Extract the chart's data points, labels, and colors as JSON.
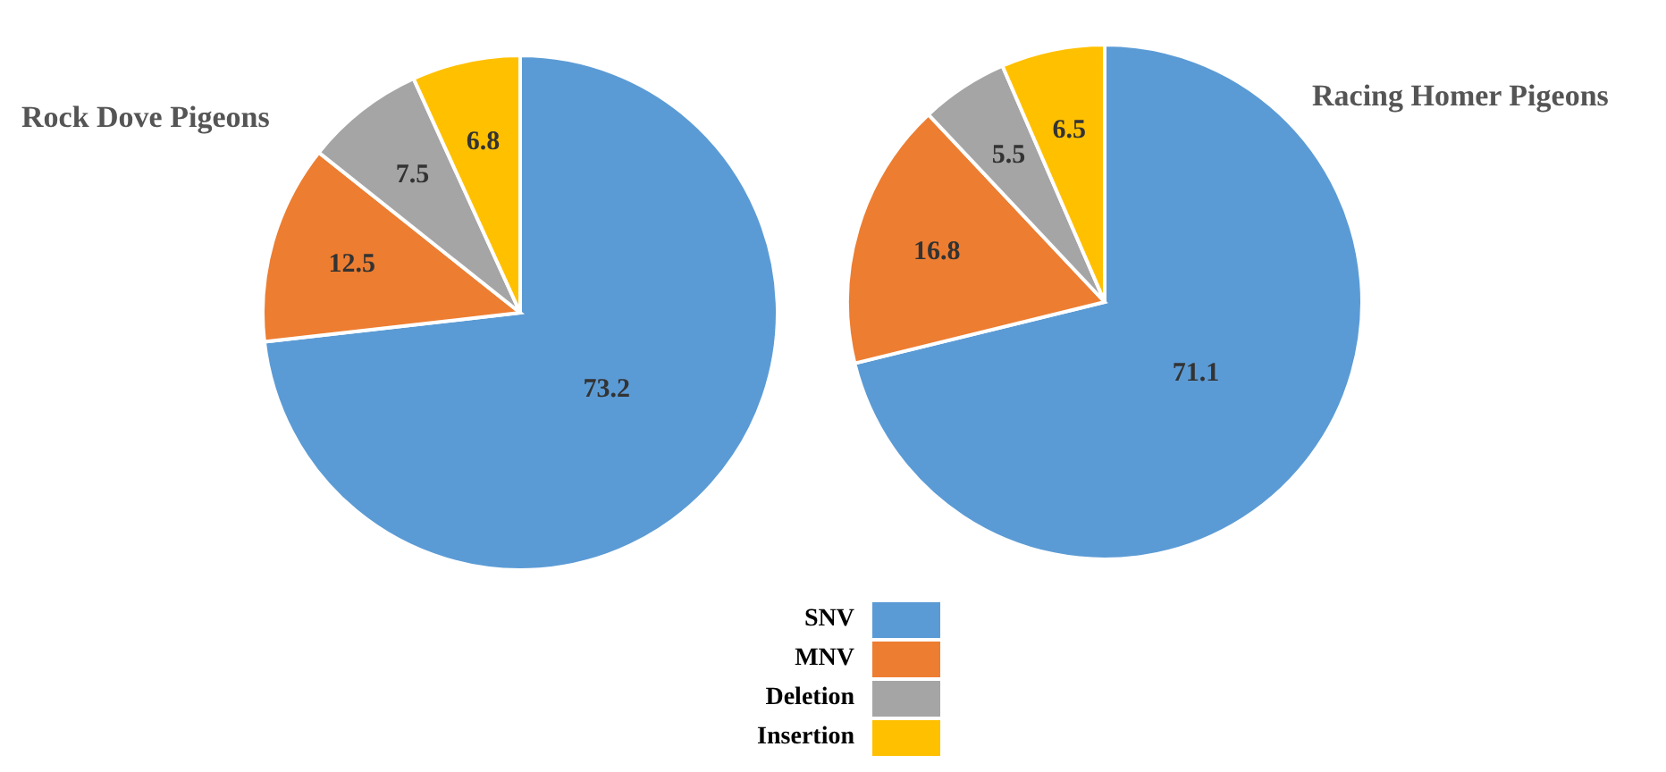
{
  "chart_data": [
    {
      "type": "pie",
      "title": "Rock Dove Pigeons",
      "categories": [
        "SNV",
        "MNV",
        "Deletion",
        "Insertion"
      ],
      "values": [
        73.2,
        12.5,
        7.5,
        6.8
      ],
      "colors": [
        "#5b9bd5",
        "#ed7d31",
        "#a5a5a5",
        "#ffc000"
      ],
      "data_labels": true,
      "legend": "bottom"
    },
    {
      "type": "pie",
      "title": "Racing Homer Pigeons",
      "categories": [
        null,
        null,
        null,
        null
      ],
      "values": [
        71.1,
        16.8,
        5.5,
        6.5
      ],
      "colors": [
        "#5b9bd5",
        "#ed7d31",
        "#a5a5a5",
        "#ffc000"
      ],
      "data_labels": true
    }
  ]
}
